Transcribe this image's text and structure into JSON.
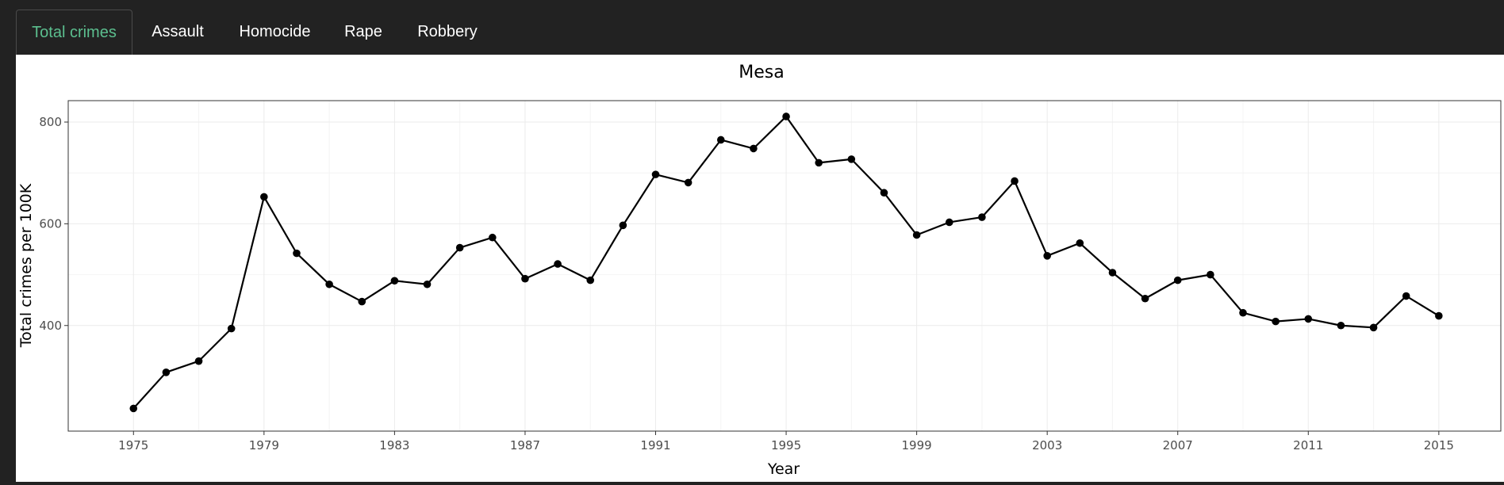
{
  "tabs": [
    {
      "label": "Total crimes",
      "active": true
    },
    {
      "label": "Assault",
      "active": false
    },
    {
      "label": "Homocide",
      "active": false
    },
    {
      "label": "Rape",
      "active": false
    },
    {
      "label": "Robbery",
      "active": false
    }
  ],
  "colors": {
    "background": "#222222",
    "active_tab_text": "#5cbf8f",
    "tab_text": "#ffffff",
    "line": "#000000",
    "grid": "#ebebeb"
  },
  "chart_data": {
    "type": "line",
    "title": "Mesa",
    "xlabel": "Year",
    "ylabel": "Total crimes  per 100K",
    "x": [
      1975,
      1976,
      1977,
      1978,
      1979,
      1980,
      1981,
      1982,
      1983,
      1984,
      1985,
      1986,
      1987,
      1988,
      1989,
      1990,
      1991,
      1992,
      1993,
      1994,
      1995,
      1996,
      1997,
      1998,
      1999,
      2000,
      2001,
      2002,
      2003,
      2004,
      2005,
      2006,
      2007,
      2008,
      2009,
      2010,
      2011,
      2012,
      2013,
      2014,
      2015
    ],
    "series": [
      {
        "values": [
          237,
          308,
          330,
          394,
          653,
          542,
          481,
          447,
          488,
          481,
          553,
          573,
          492,
          521,
          489,
          597,
          697,
          681,
          765,
          748,
          811,
          720,
          727,
          661,
          578,
          603,
          613,
          684,
          537,
          562,
          504,
          453,
          489,
          500,
          425,
          408,
          413,
          400,
          396,
          458,
          419
        ]
      }
    ],
    "xticks": [
      1975,
      1979,
      1983,
      1987,
      1991,
      1995,
      1999,
      2003,
      2007,
      2011,
      2015
    ],
    "yticks": [
      400,
      600,
      800
    ],
    "xlim": [
      1973,
      2016.9
    ],
    "ylim": [
      192.4,
      842.1
    ],
    "grid": true,
    "legend": "none"
  }
}
